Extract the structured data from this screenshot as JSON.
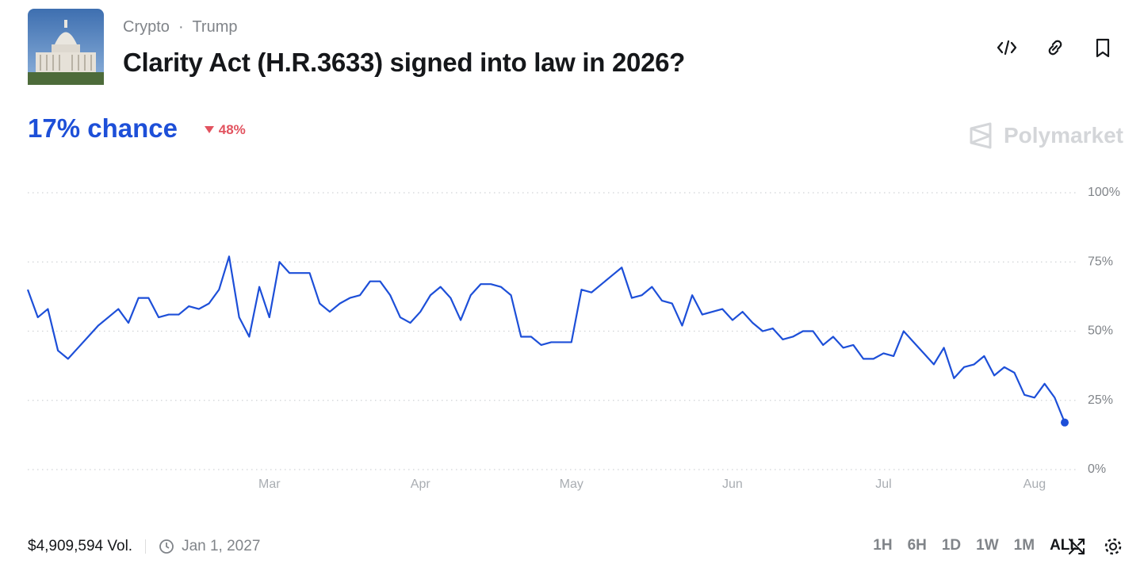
{
  "header": {
    "breadcrumb": [
      "Crypto",
      "Trump"
    ],
    "title": "Clarity Act (H.R.3633) signed into law in 2026?"
  },
  "summary": {
    "chance": "17% chance",
    "change": "48%",
    "brand": "Polymarket"
  },
  "chart_data": {
    "type": "line",
    "color": "#1d4fd8",
    "grid": true,
    "categories": [
      null,
      null,
      null,
      null,
      null,
      null,
      null,
      null,
      null,
      null,
      null,
      null,
      null,
      null,
      null,
      null,
      null,
      null,
      null,
      null,
      null,
      null,
      null,
      null,
      "Mar",
      null,
      null,
      null,
      null,
      null,
      null,
      null,
      null,
      null,
      null,
      null,
      null,
      null,
      null,
      "Apr",
      null,
      null,
      null,
      null,
      null,
      null,
      null,
      null,
      null,
      null,
      null,
      null,
      null,
      null,
      "May",
      null,
      null,
      null,
      null,
      null,
      null,
      null,
      null,
      null,
      null,
      null,
      null,
      null,
      null,
      null,
      "Jun",
      null,
      null,
      null,
      null,
      null,
      null,
      null,
      null,
      null,
      null,
      null,
      null,
      null,
      null,
      "Jul",
      null,
      null,
      null,
      null,
      null,
      null,
      null,
      null,
      null,
      null,
      null,
      null,
      null,
      null,
      "Aug",
      null,
      null,
      null
    ],
    "values": [
      65,
      55,
      58,
      43,
      40,
      44,
      48,
      52,
      55,
      58,
      53,
      62,
      62,
      55,
      56,
      56,
      59,
      58,
      60,
      65,
      77,
      55,
      48,
      66,
      55,
      75,
      71,
      71,
      71,
      60,
      57,
      60,
      62,
      63,
      68,
      68,
      63,
      55,
      53,
      57,
      63,
      66,
      62,
      54,
      63,
      67,
      67,
      66,
      63,
      48,
      48,
      45,
      46,
      46,
      46,
      65,
      64,
      67,
      70,
      73,
      62,
      63,
      66,
      61,
      60,
      52,
      63,
      56,
      57,
      58,
      54,
      57,
      53,
      50,
      51,
      47,
      48,
      50,
      50,
      45,
      48,
      44,
      45,
      40,
      40,
      42,
      41,
      50,
      46,
      42,
      38,
      44,
      33,
      37,
      38,
      41,
      34,
      37,
      35,
      27,
      26,
      31,
      26,
      17
    ],
    "ylim": [
      0,
      100
    ],
    "yticks": [
      {
        "value": 0,
        "label": "0%"
      },
      {
        "value": 25,
        "label": "25%"
      },
      {
        "value": 50,
        "label": "50%"
      },
      {
        "value": 75,
        "label": "75%"
      },
      {
        "value": 100,
        "label": "100%"
      }
    ]
  },
  "footer": {
    "volume": "$4,909,594 Vol.",
    "end_date": "Jan 1, 2027",
    "ranges": [
      "1H",
      "6H",
      "1D",
      "1W",
      "1M",
      "ALL"
    ],
    "active_range": 5
  }
}
